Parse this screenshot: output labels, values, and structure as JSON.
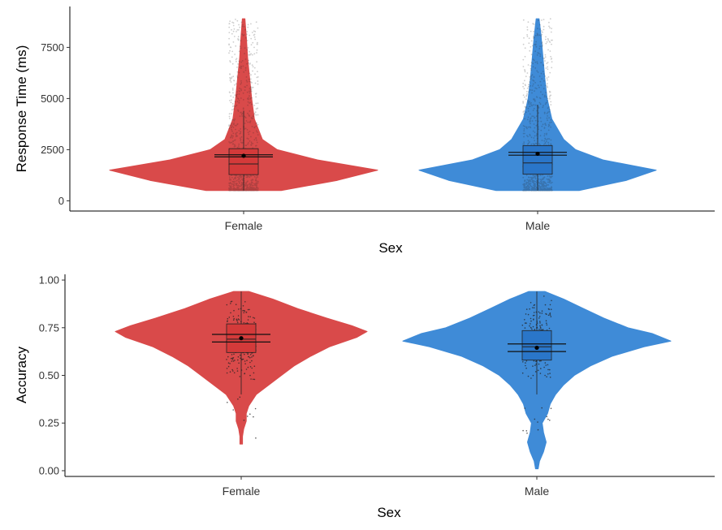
{
  "colors": {
    "female": "#d94a4a",
    "male": "#3f8bd7",
    "box_female": "#d43a3a",
    "box_male": "#2a76c9"
  },
  "chart_data": [
    {
      "type": "violin",
      "xlabel": "Sex",
      "ylabel": "Response Time (ms)",
      "categories": [
        "Female",
        "Male"
      ],
      "ylim": [
        -500,
        9500
      ],
      "yticks": [
        0,
        2500,
        5000,
        7500
      ],
      "tick_labels": [
        "0",
        "2500",
        "5000",
        "7500"
      ],
      "grid": false,
      "series": [
        {
          "category": "Female",
          "box": {
            "q1": 1280,
            "median": 1800,
            "q3": 2550,
            "whisker_low": 500,
            "whisker_high": 4400
          },
          "mean": 2200,
          "ci": [
            2150,
            2250
          ],
          "density": [
            [
              500,
              0.28
            ],
            [
              1000,
              0.7
            ],
            [
              1500,
              1.0
            ],
            [
              2000,
              0.55
            ],
            [
              2500,
              0.25
            ],
            [
              3000,
              0.14
            ],
            [
              4000,
              0.08
            ],
            [
              5000,
              0.06
            ],
            [
              6000,
              0.045
            ],
            [
              7000,
              0.03
            ],
            [
              8000,
              0.02
            ],
            [
              8900,
              0.01
            ]
          ]
        },
        {
          "category": "Male",
          "box": {
            "q1": 1300,
            "median": 1850,
            "q3": 2700,
            "whisker_low": 500,
            "whisker_high": 4700
          },
          "mean": 2300,
          "ci": [
            2230,
            2370
          ],
          "density": [
            [
              500,
              0.35
            ],
            [
              1000,
              0.75
            ],
            [
              1500,
              1.0
            ],
            [
              2000,
              0.55
            ],
            [
              2500,
              0.32
            ],
            [
              3000,
              0.22
            ],
            [
              4000,
              0.12
            ],
            [
              5000,
              0.08
            ],
            [
              6000,
              0.06
            ],
            [
              7000,
              0.045
            ],
            [
              8000,
              0.03
            ],
            [
              8900,
              0.012
            ]
          ]
        }
      ]
    },
    {
      "type": "violin",
      "xlabel": "Sex",
      "ylabel": "Accuracy",
      "categories": [
        "Female",
        "Male"
      ],
      "ylim": [
        -0.03,
        1.03
      ],
      "yticks": [
        0,
        0.25,
        0.5,
        0.75,
        1.0
      ],
      "tick_labels": [
        "0.00",
        "0.25",
        "0.50",
        "0.75",
        "1.00"
      ],
      "grid": false,
      "series": [
        {
          "category": "Female",
          "box": {
            "q1": 0.62,
            "median": 0.69,
            "q3": 0.77,
            "whisker_low": 0.4,
            "whisker_high": 0.94
          },
          "mean": 0.695,
          "ci": [
            0.675,
            0.715
          ],
          "density": [
            [
              0.14,
              0.01
            ],
            [
              0.18,
              0.01
            ],
            [
              0.22,
              0.02
            ],
            [
              0.26,
              0.04
            ],
            [
              0.3,
              0.04
            ],
            [
              0.34,
              0.06
            ],
            [
              0.4,
              0.12
            ],
            [
              0.45,
              0.22
            ],
            [
              0.5,
              0.32
            ],
            [
              0.55,
              0.42
            ],
            [
              0.6,
              0.55
            ],
            [
              0.65,
              0.7
            ],
            [
              0.7,
              0.92
            ],
            [
              0.73,
              1.0
            ],
            [
              0.76,
              0.88
            ],
            [
              0.8,
              0.68
            ],
            [
              0.85,
              0.45
            ],
            [
              0.9,
              0.25
            ],
            [
              0.94,
              0.06
            ]
          ]
        },
        {
          "category": "Male",
          "box": {
            "q1": 0.58,
            "median": 0.65,
            "q3": 0.735,
            "whisker_low": 0.4,
            "whisker_high": 0.94
          },
          "mean": 0.645,
          "ci": [
            0.625,
            0.665
          ],
          "density": [
            [
              0.01,
              0.01
            ],
            [
              0.05,
              0.02
            ],
            [
              0.1,
              0.05
            ],
            [
              0.15,
              0.07
            ],
            [
              0.2,
              0.05
            ],
            [
              0.25,
              0.04
            ],
            [
              0.3,
              0.08
            ],
            [
              0.35,
              0.1
            ],
            [
              0.4,
              0.14
            ],
            [
              0.45,
              0.2
            ],
            [
              0.5,
              0.28
            ],
            [
              0.55,
              0.4
            ],
            [
              0.6,
              0.56
            ],
            [
              0.65,
              0.8
            ],
            [
              0.68,
              1.0
            ],
            [
              0.72,
              0.86
            ],
            [
              0.75,
              0.68
            ],
            [
              0.8,
              0.5
            ],
            [
              0.85,
              0.35
            ],
            [
              0.9,
              0.2
            ],
            [
              0.94,
              0.06
            ]
          ]
        }
      ]
    }
  ]
}
